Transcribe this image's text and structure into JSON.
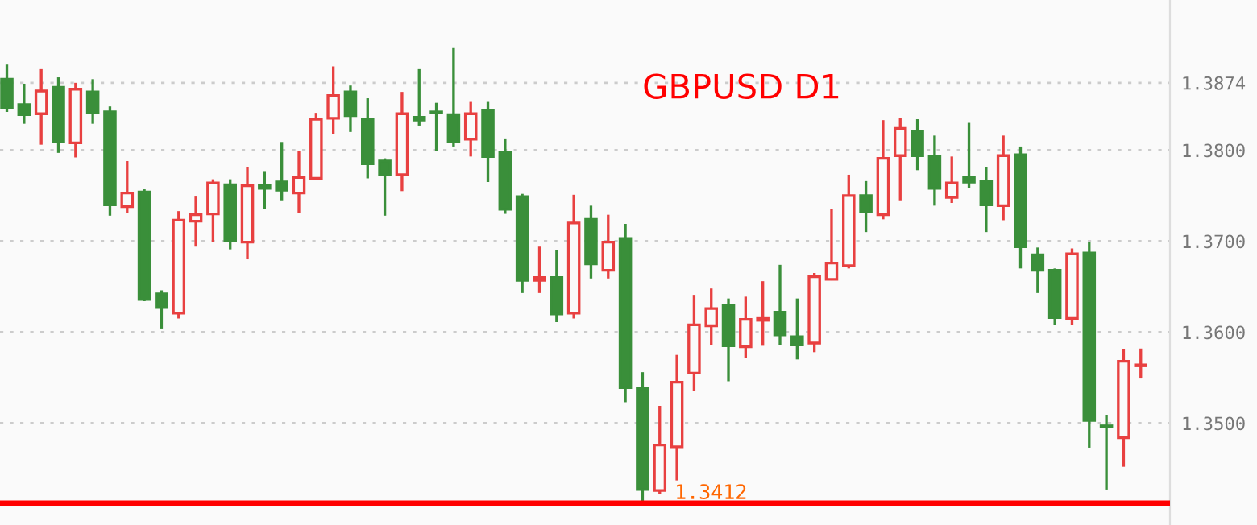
{
  "chart_data": {
    "type": "candlestick",
    "title": "GBPUSD D1",
    "categories": [
      null,
      null,
      null,
      null,
      null,
      null,
      null,
      null,
      null,
      null,
      null,
      null,
      null,
      null,
      null,
      null,
      null,
      null,
      null,
      null,
      null,
      null,
      null,
      null,
      null,
      null,
      null,
      null,
      null,
      null,
      null,
      null,
      null,
      null,
      null,
      null,
      null,
      null,
      null,
      null,
      null,
      null,
      null,
      null,
      null,
      null,
      null,
      null,
      null,
      null,
      null,
      null,
      null,
      null,
      null,
      null,
      null,
      null,
      null,
      null,
      null,
      null,
      null,
      null,
      null,
      null,
      null
    ],
    "ohlc": [
      [
        1.3878,
        1.3894,
        1.3842,
        1.3847
      ],
      [
        1.385,
        1.3873,
        1.3829,
        1.3839
      ],
      [
        1.384,
        1.3889,
        1.3806,
        1.3865
      ],
      [
        1.3869,
        1.388,
        1.3797,
        1.3809
      ],
      [
        1.3808,
        1.3874,
        1.3792,
        1.3867
      ],
      [
        1.3864,
        1.3878,
        1.3829,
        1.3841
      ],
      [
        1.3842,
        1.3848,
        1.3728,
        1.374
      ],
      [
        1.3738,
        1.3788,
        1.3731,
        1.3753
      ],
      [
        1.3754,
        1.3757,
        1.3634,
        1.3636
      ],
      [
        1.3642,
        1.3646,
        1.3604,
        1.3627
      ],
      [
        1.3621,
        1.3733,
        1.3615,
        1.3723
      ],
      [
        1.3722,
        1.3749,
        1.3694,
        1.3729
      ],
      [
        1.373,
        1.3768,
        1.3699,
        1.3764
      ],
      [
        1.3762,
        1.3768,
        1.3691,
        1.3701
      ],
      [
        1.3699,
        1.3781,
        1.368,
        1.3761
      ],
      [
        1.3761,
        1.3777,
        1.3735,
        1.3758
      ],
      [
        1.3765,
        1.3809,
        1.3744,
        1.3756
      ],
      [
        1.3753,
        1.3799,
        1.3731,
        1.377
      ],
      [
        1.3769,
        1.3841,
        1.3768,
        1.3834
      ],
      [
        1.3835,
        1.3892,
        1.3818,
        1.386
      ],
      [
        1.3864,
        1.3871,
        1.382,
        1.3838
      ],
      [
        1.3834,
        1.3857,
        1.3769,
        1.3785
      ],
      [
        1.3788,
        1.3791,
        1.3728,
        1.3773
      ],
      [
        1.3773,
        1.3864,
        1.3755,
        1.384
      ],
      [
        1.3836,
        1.3889,
        1.3827,
        1.3833
      ],
      [
        1.3842,
        1.3852,
        1.3799,
        1.3841
      ],
      [
        1.3839,
        1.3913,
        1.3804,
        1.3809
      ],
      [
        1.3812,
        1.3853,
        1.3793,
        1.384
      ],
      [
        1.3844,
        1.3853,
        1.3765,
        1.3793
      ],
      [
        1.3798,
        1.3812,
        1.373,
        1.3735
      ],
      [
        1.3749,
        1.3752,
        1.3643,
        1.3657
      ],
      [
        1.3657,
        1.3694,
        1.3643,
        1.366
      ],
      [
        1.366,
        1.369,
        1.3611,
        1.362
      ],
      [
        1.3621,
        1.3751,
        1.3615,
        1.372
      ],
      [
        1.3724,
        1.3739,
        1.3659,
        1.3675
      ],
      [
        1.3668,
        1.3729,
        1.3659,
        1.3699
      ],
      [
        1.3703,
        1.3719,
        1.3523,
        1.3539
      ],
      [
        1.3538,
        1.3556,
        1.3412,
        1.3427
      ],
      [
        1.3426,
        1.3519,
        1.3422,
        1.3476
      ],
      [
        1.3474,
        1.3575,
        1.3437,
        1.3545
      ],
      [
        1.3555,
        1.3641,
        1.3535,
        1.3608
      ],
      [
        1.3607,
        1.3648,
        1.3586,
        1.3626
      ],
      [
        1.363,
        1.3637,
        1.3546,
        1.3585
      ],
      [
        1.3584,
        1.3639,
        1.3572,
        1.3614
      ],
      [
        1.3613,
        1.3656,
        1.3585,
        1.3615
      ],
      [
        1.3622,
        1.3674,
        1.3586,
        1.3597
      ],
      [
        1.3595,
        1.3637,
        1.357,
        1.3586
      ],
      [
        1.3588,
        1.3665,
        1.3578,
        1.3661
      ],
      [
        1.3658,
        1.3735,
        1.3657,
        1.3676
      ],
      [
        1.3673,
        1.3773,
        1.367,
        1.375
      ],
      [
        1.375,
        1.3766,
        1.371,
        1.3732
      ],
      [
        1.3729,
        1.3833,
        1.3724,
        1.3791
      ],
      [
        1.3794,
        1.3835,
        1.3744,
        1.3824
      ],
      [
        1.3821,
        1.3834,
        1.3778,
        1.3794
      ],
      [
        1.3793,
        1.3816,
        1.3739,
        1.3758
      ],
      [
        1.3748,
        1.3793,
        1.3742,
        1.3764
      ],
      [
        1.377,
        1.383,
        1.3758,
        1.3765
      ],
      [
        1.3766,
        1.3781,
        1.371,
        1.374
      ],
      [
        1.3739,
        1.3816,
        1.3723,
        1.3794
      ],
      [
        1.3795,
        1.3804,
        1.367,
        1.3694
      ],
      [
        1.3685,
        1.3693,
        1.3643,
        1.3668
      ],
      [
        1.3668,
        1.367,
        1.3608,
        1.3616
      ],
      [
        1.3615,
        1.3692,
        1.3608,
        1.3686
      ],
      [
        1.3687,
        1.3699,
        1.3473,
        1.3503
      ],
      [
        1.3497,
        1.3509,
        1.3427,
        1.3496
      ],
      [
        1.3484,
        1.3581,
        1.3452,
        1.3568
      ],
      [
        1.3563,
        1.3582,
        1.3549,
        1.3564
      ]
    ],
    "colors": [
      "#3a8f3a",
      "#3a8f3a",
      "#e84040",
      "#3a8f3a",
      "#e84040",
      "#3a8f3a",
      "#3a8f3a",
      "#e84040",
      "#3a8f3a",
      "#3a8f3a",
      "#e84040",
      "#e84040",
      "#e84040",
      "#3a8f3a",
      "#e84040",
      "#3a8f3a",
      "#3a8f3a",
      "#e84040",
      "#e84040",
      "#e84040",
      "#3a8f3a",
      "#3a8f3a",
      "#3a8f3a",
      "#e84040",
      "#3a8f3a",
      "#3a8f3a",
      "#3a8f3a",
      "#e84040",
      "#3a8f3a",
      "#3a8f3a",
      "#3a8f3a",
      "#e84040",
      "#3a8f3a",
      "#e84040",
      "#3a8f3a",
      "#e84040",
      "#3a8f3a",
      "#3a8f3a",
      "#e84040",
      "#e84040",
      "#e84040",
      "#e84040",
      "#3a8f3a",
      "#e84040",
      "#e84040",
      "#3a8f3a",
      "#3a8f3a",
      "#e84040",
      "#e84040",
      "#e84040",
      "#3a8f3a",
      "#e84040",
      "#e84040",
      "#3a8f3a",
      "#3a8f3a",
      "#e84040",
      "#3a8f3a",
      "#3a8f3a",
      "#e84040",
      "#3a8f3a",
      "#3a8f3a",
      "#3a8f3a",
      "#e84040",
      "#3a8f3a",
      "#3a8f3a",
      "#e84040",
      "#e84040"
    ],
    "ylim": [
      1.3388,
      1.3965
    ],
    "yticks": [
      {
        "value": 1.35,
        "label": "1.3500"
      },
      {
        "value": 1.36,
        "label": "1.3600"
      },
      {
        "value": 1.37,
        "label": "1.3700"
      },
      {
        "value": 1.38,
        "label": "1.3800"
      },
      {
        "value": 1.3874,
        "label": "1.3874"
      }
    ],
    "ref_lines": [
      {
        "axis": "y",
        "value": 1.3412,
        "label": "1.3412",
        "color": "#ff0000"
      }
    ],
    "grid": "y",
    "legend": false
  }
}
